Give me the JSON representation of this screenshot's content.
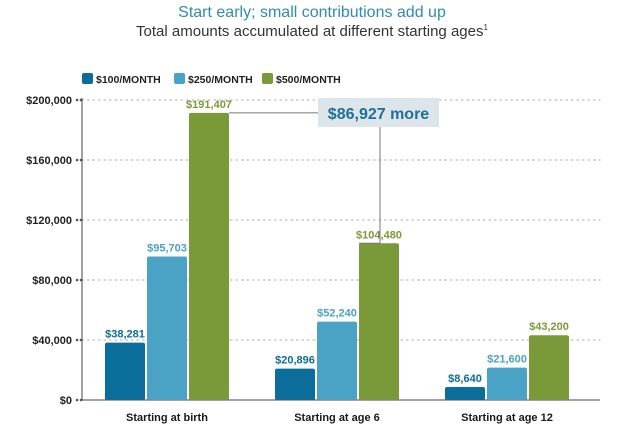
{
  "chart_data": {
    "type": "bar",
    "title": "Start early; small contributions add up",
    "subtitle": "Total amounts accumulated at different starting ages",
    "subtitle_footnote": "1",
    "categories": [
      "Starting at birth",
      "Starting at age 6",
      "Starting at age 12"
    ],
    "series": [
      {
        "name": "$100/MONTH",
        "color": "#0b6d9a",
        "values": [
          38281,
          20896,
          8640
        ],
        "labels": [
          "$38,281",
          "$20,896",
          "$8,640"
        ]
      },
      {
        "name": "$250/MONTH",
        "color": "#4aa3c4",
        "values": [
          95703,
          52240,
          21600
        ],
        "labels": [
          "$95,703",
          "$52,240",
          "$21,600"
        ]
      },
      {
        "name": "$500/MONTH",
        "color": "#7a9a3a",
        "values": [
          191407,
          104480,
          43200
        ],
        "labels": [
          "$191,407",
          "$104,480",
          "$43,200"
        ]
      }
    ],
    "ylim": [
      0,
      200000
    ],
    "yticks": [
      0,
      40000,
      80000,
      120000,
      160000,
      200000
    ],
    "ytick_labels": [
      "$0",
      "$40,000",
      "$80,000",
      "$120,000",
      "$160,000",
      "$200,000"
    ],
    "legend_position": "top-left",
    "grid": true,
    "annotation": {
      "text": "$86,927 more",
      "from_series": 2,
      "from_category": 0,
      "to_category": 1
    }
  },
  "colors": {
    "label_dark": "#1a1a1a",
    "callout_bg": "#dce6ea",
    "callout_text": "#1f6f98",
    "grid": "#bdbdbd"
  }
}
